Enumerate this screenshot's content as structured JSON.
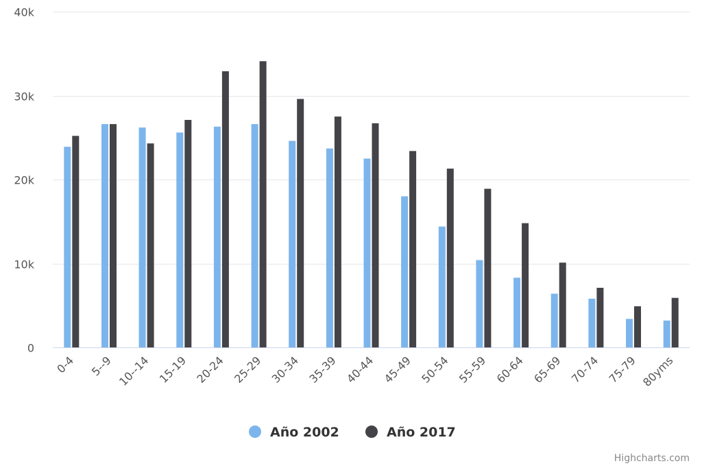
{
  "chart_data": {
    "type": "bar",
    "categories": [
      "0-4",
      "5--9",
      "10--14",
      "15-19",
      "20-24",
      "25-29",
      "30-34",
      "35-39",
      "40-44",
      "45-49",
      "50-54",
      "55-59",
      "60-64",
      "65-69",
      "70-74",
      "75-79",
      "80yms"
    ],
    "series": [
      {
        "name": "Año 2002",
        "color": "#7cb5ec",
        "values": [
          23900,
          26600,
          26200,
          25600,
          26300,
          26600,
          24600,
          23700,
          22500,
          18000,
          14400,
          10400,
          8300,
          6400,
          5800,
          3400,
          3200
        ]
      },
      {
        "name": "Año 2017",
        "color": "#434348",
        "values": [
          25200,
          26600,
          24300,
          27100,
          32900,
          34100,
          29600,
          27500,
          26700,
          23400,
          21300,
          18900,
          14800,
          10100,
          7100,
          4900,
          5900
        ]
      }
    ],
    "ylim": [
      0,
      40000
    ],
    "yticks": [
      "0",
      "10k",
      "20k",
      "30k",
      "40k"
    ],
    "ytick_values": [
      0,
      10000,
      20000,
      30000,
      40000
    ],
    "grid": true,
    "legend_position": "bottom-center",
    "title": "",
    "xlabel": "",
    "ylabel": ""
  },
  "credits": "Highcharts.com"
}
